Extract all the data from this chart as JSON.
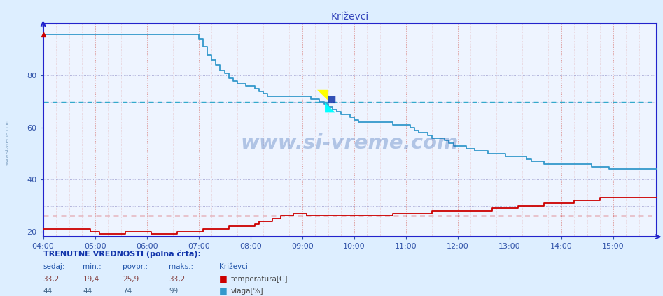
{
  "title": "Križevci",
  "bg_color": "#ddeeff",
  "plot_bg_color": "#eef4ff",
  "ylim": [
    18,
    100
  ],
  "yticks": [
    20,
    40,
    60,
    80
  ],
  "x_start_min": 240,
  "x_end_min": 950,
  "xtick_positions": [
    240,
    300,
    360,
    420,
    480,
    540,
    600,
    660,
    720,
    780,
    840,
    900
  ],
  "xtick_labels": [
    "04:00",
    "05:00",
    "06:00",
    "07:00",
    "08:00",
    "09:00",
    "10:00",
    "11:00",
    "12:00",
    "13:00",
    "14:00",
    "15:00"
  ],
  "hline_cyan_y": 70,
  "hline_red_y": 26,
  "temp_color": "#cc0000",
  "vlaga_color": "#3399cc",
  "grid_v_color": "#dd9999",
  "grid_h_color": "#9999cc",
  "axis_color": "#2222cc",
  "tick_color": "#3355aa",
  "temp_data": [
    [
      240,
      21
    ],
    [
      290,
      21
    ],
    [
      295,
      20
    ],
    [
      300,
      20
    ],
    [
      305,
      19
    ],
    [
      330,
      19
    ],
    [
      335,
      20
    ],
    [
      360,
      20
    ],
    [
      365,
      19
    ],
    [
      390,
      19
    ],
    [
      395,
      20
    ],
    [
      420,
      20
    ],
    [
      425,
      21
    ],
    [
      450,
      21
    ],
    [
      455,
      22
    ],
    [
      480,
      22
    ],
    [
      485,
      23
    ],
    [
      490,
      24
    ],
    [
      500,
      24
    ],
    [
      505,
      25
    ],
    [
      510,
      25
    ],
    [
      515,
      26
    ],
    [
      520,
      26
    ],
    [
      525,
      26
    ],
    [
      530,
      27
    ],
    [
      535,
      27
    ],
    [
      540,
      27
    ],
    [
      545,
      26
    ],
    [
      550,
      26
    ],
    [
      555,
      26
    ],
    [
      560,
      26
    ],
    [
      565,
      26
    ],
    [
      570,
      26
    ],
    [
      575,
      26
    ],
    [
      580,
      26
    ],
    [
      585,
      26
    ],
    [
      590,
      26
    ],
    [
      595,
      26
    ],
    [
      600,
      26
    ],
    [
      605,
      26
    ],
    [
      610,
      26
    ],
    [
      615,
      26
    ],
    [
      620,
      26
    ],
    [
      625,
      26
    ],
    [
      630,
      26
    ],
    [
      635,
      26
    ],
    [
      640,
      26
    ],
    [
      645,
      27
    ],
    [
      650,
      27
    ],
    [
      655,
      27
    ],
    [
      660,
      27
    ],
    [
      665,
      27
    ],
    [
      670,
      27
    ],
    [
      675,
      27
    ],
    [
      680,
      27
    ],
    [
      685,
      27
    ],
    [
      690,
      28
    ],
    [
      695,
      28
    ],
    [
      700,
      28
    ],
    [
      705,
      28
    ],
    [
      710,
      28
    ],
    [
      715,
      28
    ],
    [
      720,
      28
    ],
    [
      725,
      28
    ],
    [
      730,
      28
    ],
    [
      735,
      28
    ],
    [
      740,
      28
    ],
    [
      745,
      28
    ],
    [
      750,
      28
    ],
    [
      755,
      28
    ],
    [
      760,
      29
    ],
    [
      765,
      29
    ],
    [
      770,
      29
    ],
    [
      775,
      29
    ],
    [
      780,
      29
    ],
    [
      785,
      29
    ],
    [
      790,
      30
    ],
    [
      795,
      30
    ],
    [
      800,
      30
    ],
    [
      805,
      30
    ],
    [
      810,
      30
    ],
    [
      815,
      30
    ],
    [
      820,
      31
    ],
    [
      825,
      31
    ],
    [
      830,
      31
    ],
    [
      835,
      31
    ],
    [
      840,
      31
    ],
    [
      845,
      31
    ],
    [
      850,
      31
    ],
    [
      855,
      32
    ],
    [
      860,
      32
    ],
    [
      865,
      32
    ],
    [
      870,
      32
    ],
    [
      875,
      32
    ],
    [
      880,
      32
    ],
    [
      885,
      33
    ],
    [
      890,
      33
    ],
    [
      895,
      33
    ],
    [
      900,
      33
    ],
    [
      910,
      33
    ],
    [
      915,
      33
    ],
    [
      920,
      33
    ],
    [
      925,
      33
    ],
    [
      930,
      33
    ],
    [
      935,
      33
    ],
    [
      940,
      33
    ],
    [
      945,
      33
    ],
    [
      950,
      33
    ]
  ],
  "vlaga_data": [
    [
      240,
      96
    ],
    [
      415,
      96
    ],
    [
      420,
      94
    ],
    [
      425,
      91
    ],
    [
      430,
      88
    ],
    [
      435,
      86
    ],
    [
      440,
      84
    ],
    [
      445,
      82
    ],
    [
      450,
      81
    ],
    [
      455,
      79
    ],
    [
      460,
      78
    ],
    [
      465,
      77
    ],
    [
      470,
      77
    ],
    [
      475,
      76
    ],
    [
      480,
      76
    ],
    [
      485,
      75
    ],
    [
      490,
      74
    ],
    [
      495,
      73
    ],
    [
      500,
      72
    ],
    [
      505,
      72
    ],
    [
      510,
      72
    ],
    [
      515,
      72
    ],
    [
      520,
      72
    ],
    [
      525,
      72
    ],
    [
      530,
      72
    ],
    [
      535,
      72
    ],
    [
      540,
      72
    ],
    [
      545,
      72
    ],
    [
      550,
      71
    ],
    [
      555,
      71
    ],
    [
      560,
      70
    ],
    [
      565,
      69
    ],
    [
      570,
      68
    ],
    [
      575,
      67
    ],
    [
      580,
      66
    ],
    [
      585,
      65
    ],
    [
      590,
      65
    ],
    [
      595,
      64
    ],
    [
      600,
      63
    ],
    [
      605,
      62
    ],
    [
      610,
      62
    ],
    [
      615,
      62
    ],
    [
      620,
      62
    ],
    [
      625,
      62
    ],
    [
      630,
      62
    ],
    [
      635,
      62
    ],
    [
      640,
      62
    ],
    [
      645,
      61
    ],
    [
      650,
      61
    ],
    [
      655,
      61
    ],
    [
      660,
      61
    ],
    [
      665,
      60
    ],
    [
      670,
      59
    ],
    [
      675,
      58
    ],
    [
      680,
      58
    ],
    [
      685,
      57
    ],
    [
      690,
      56
    ],
    [
      695,
      56
    ],
    [
      700,
      56
    ],
    [
      705,
      55
    ],
    [
      710,
      54
    ],
    [
      715,
      53
    ],
    [
      720,
      53
    ],
    [
      725,
      53
    ],
    [
      730,
      52
    ],
    [
      735,
      52
    ],
    [
      740,
      51
    ],
    [
      745,
      51
    ],
    [
      750,
      51
    ],
    [
      755,
      50
    ],
    [
      760,
      50
    ],
    [
      765,
      50
    ],
    [
      770,
      50
    ],
    [
      775,
      49
    ],
    [
      780,
      49
    ],
    [
      785,
      49
    ],
    [
      790,
      49
    ],
    [
      795,
      49
    ],
    [
      800,
      48
    ],
    [
      805,
      47
    ],
    [
      810,
      47
    ],
    [
      815,
      47
    ],
    [
      820,
      46
    ],
    [
      825,
      46
    ],
    [
      830,
      46
    ],
    [
      835,
      46
    ],
    [
      840,
      46
    ],
    [
      845,
      46
    ],
    [
      850,
      46
    ],
    [
      855,
      46
    ],
    [
      860,
      46
    ],
    [
      865,
      46
    ],
    [
      870,
      46
    ],
    [
      875,
      45
    ],
    [
      880,
      45
    ],
    [
      885,
      45
    ],
    [
      890,
      45
    ],
    [
      895,
      44
    ],
    [
      900,
      44
    ],
    [
      905,
      44
    ],
    [
      910,
      44
    ],
    [
      915,
      44
    ],
    [
      920,
      44
    ],
    [
      925,
      44
    ],
    [
      930,
      44
    ],
    [
      935,
      44
    ],
    [
      940,
      44
    ],
    [
      945,
      44
    ],
    [
      950,
      44
    ]
  ],
  "footer_text": "TRENUTNE VREDNOSTI (polna črta):",
  "col_headers": [
    "sedaj:",
    "min.:",
    "povpr.:",
    "maks.:",
    "Križevci"
  ],
  "temp_row": [
    "33,2",
    "19,4",
    "25,9",
    "33,2"
  ],
  "vlaga_row": [
    "44",
    "44",
    "74",
    "99"
  ],
  "temp_label": "temperatura[C]",
  "vlaga_label": "vlaga[%]",
  "watermark": "www.si-vreme.com",
  "side_watermark": "www.si-vreme.com"
}
